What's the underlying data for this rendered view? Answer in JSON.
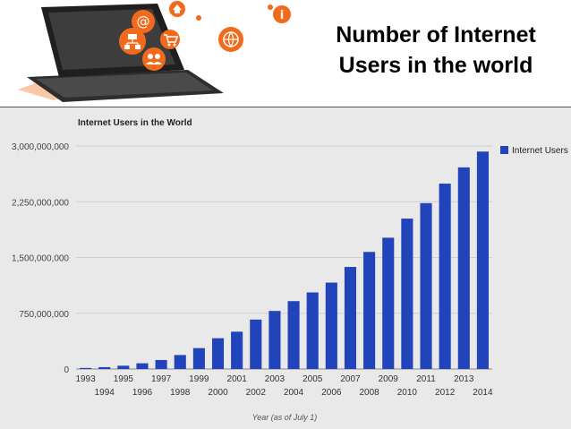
{
  "slide": {
    "title_line1": "Number of Internet",
    "title_line2": "Users in the world"
  },
  "hero": {
    "icons": [
      "at-sign-icon",
      "home-icon",
      "info-icon",
      "network-icon",
      "cart-icon",
      "globe-icon",
      "users-icon"
    ],
    "colors": {
      "orange": "#f26a1b",
      "laptop": "#3a3a3a"
    }
  },
  "chart_data": {
    "type": "bar",
    "title": "Internet Users in the World",
    "xlabel": "Year (as of July 1)",
    "ylabel": "",
    "ylim": [
      0,
      3000000000
    ],
    "yticks": [
      0,
      750000000,
      1500000000,
      2250000000,
      3000000000
    ],
    "ytick_labels": [
      "0",
      "750,000,000",
      "1,500,000,000",
      "2,250,000,000",
      "3,000,000,000"
    ],
    "legend": {
      "label": "Internet Users",
      "position": "top-right"
    },
    "color": "#2244bb",
    "categories": [
      "1993",
      "1994",
      "1995",
      "1996",
      "1997",
      "1998",
      "1999",
      "2000",
      "2001",
      "2002",
      "2003",
      "2004",
      "2005",
      "2006",
      "2007",
      "2008",
      "2009",
      "2010",
      "2011",
      "2012",
      "2013",
      "2014"
    ],
    "values": [
      14000000,
      25000000,
      44000000,
      77000000,
      121000000,
      188000000,
      281000000,
      414000000,
      502000000,
      665000000,
      781000000,
      913000000,
      1030000000,
      1162000000,
      1373000000,
      1575000000,
      1766000000,
      2023000000,
      2231000000,
      2494000000,
      2712000000,
      2925000000
    ]
  }
}
